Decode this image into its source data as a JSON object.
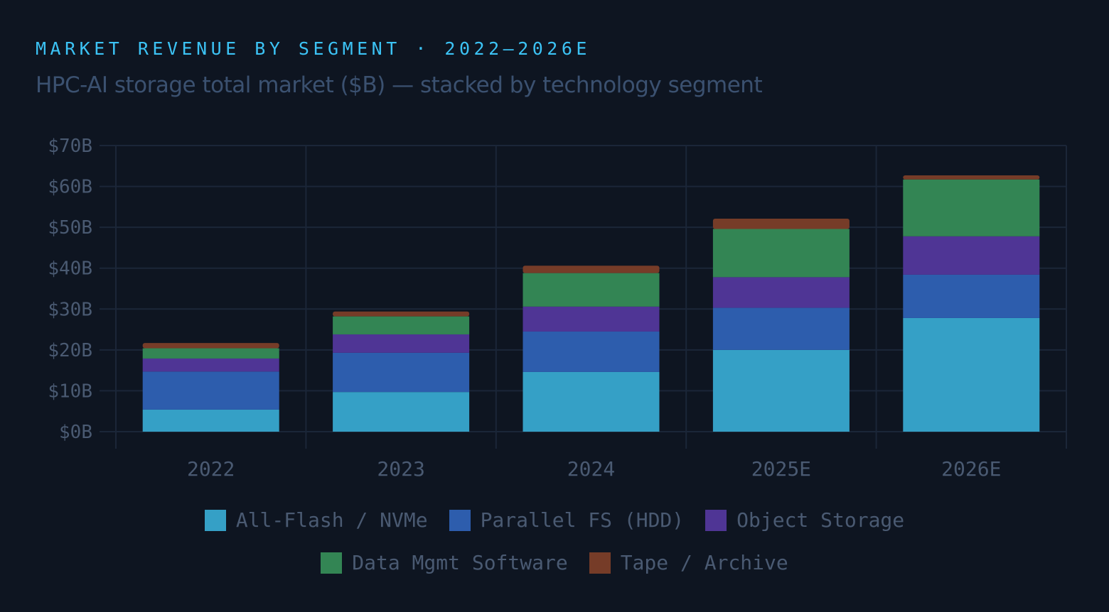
{
  "chart_data": {
    "type": "bar",
    "stacked": true,
    "title": "MARKET REVENUE BY SEGMENT · 2022–2026E",
    "subtitle": "HPC-AI storage total market ($B) — stacked by technology segment",
    "categories": [
      "2022",
      "2023",
      "2024",
      "2025E",
      "2026E"
    ],
    "series": [
      {
        "name": "All-Flash / NVMe",
        "color": "#35a0c6",
        "values": [
          5.4,
          9.7,
          14.6,
          20.0,
          27.8
        ]
      },
      {
        "name": "Parallel FS (HDD)",
        "color": "#2d5dad",
        "values": [
          9.3,
          9.6,
          9.9,
          10.3,
          10.6
        ]
      },
      {
        "name": "Object Storage",
        "color": "#4f3595",
        "values": [
          3.2,
          4.5,
          6.1,
          7.5,
          9.4
        ]
      },
      {
        "name": "Data Mgmt Software",
        "color": "#338554",
        "values": [
          2.5,
          4.4,
          8.2,
          11.8,
          13.9
        ]
      },
      {
        "name": "Tape / Archive",
        "color": "#763c28",
        "values": [
          1.3,
          1.2,
          1.8,
          2.5,
          1.0
        ]
      }
    ],
    "ylim": [
      0,
      70
    ],
    "yticks": [
      "$0B",
      "$10B",
      "$20B",
      "$30B",
      "$40B",
      "$50B",
      "$60B",
      "$70B"
    ],
    "grid": true,
    "legend_placement": "bottom",
    "colors": {
      "background": "#0e1521",
      "title": "#3cc3f5",
      "subtitle": "#3b5170",
      "axis_text": "#4a5a72",
      "grid": "#1b2638"
    }
  }
}
